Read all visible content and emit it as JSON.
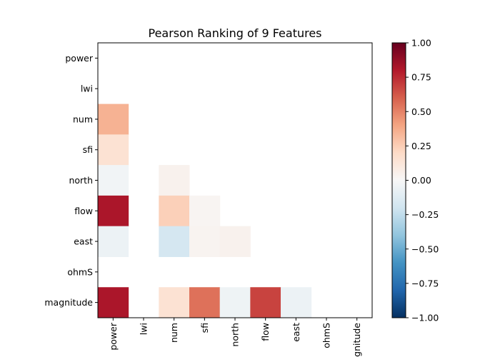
{
  "chart_data": {
    "type": "heatmap",
    "title": "Pearson Ranking of 9 Features",
    "row_labels": [
      "power",
      "lwi",
      "num",
      "sfi",
      "north",
      "flow",
      "east",
      "ohmS",
      "magnitude"
    ],
    "col_labels": [
      "power",
      "lwi",
      "num",
      "sfi",
      "north",
      "flow",
      "east",
      "ohmS",
      "magnitude"
    ],
    "mask": "lower-triangle",
    "values": [
      [
        null,
        null,
        null,
        null,
        null,
        null,
        null,
        null,
        null
      ],
      [
        null,
        null,
        null,
        null,
        null,
        null,
        null,
        null,
        null
      ],
      [
        0.35,
        null,
        null,
        null,
        null,
        null,
        null,
        null,
        null
      ],
      [
        0.15,
        null,
        null,
        null,
        null,
        null,
        null,
        null,
        null
      ],
      [
        -0.03,
        null,
        0.04,
        null,
        null,
        null,
        null,
        null,
        null
      ],
      [
        0.82,
        null,
        0.24,
        0.02,
        null,
        null,
        null,
        null,
        null
      ],
      [
        -0.06,
        null,
        -0.18,
        0.03,
        0.04,
        null,
        null,
        null,
        null
      ],
      [
        null,
        null,
        null,
        null,
        null,
        null,
        null,
        null,
        null
      ],
      [
        0.82,
        null,
        0.15,
        0.55,
        -0.05,
        0.68,
        -0.06,
        null,
        null
      ]
    ],
    "colorbar": {
      "min": -1.0,
      "max": 1.0,
      "ticks": [
        "1.00",
        "0.75",
        "0.50",
        "0.25",
        "0.00",
        "−0.25",
        "−0.50",
        "−0.75",
        "−1.00"
      ],
      "colormap": "RdBu_r"
    }
  }
}
